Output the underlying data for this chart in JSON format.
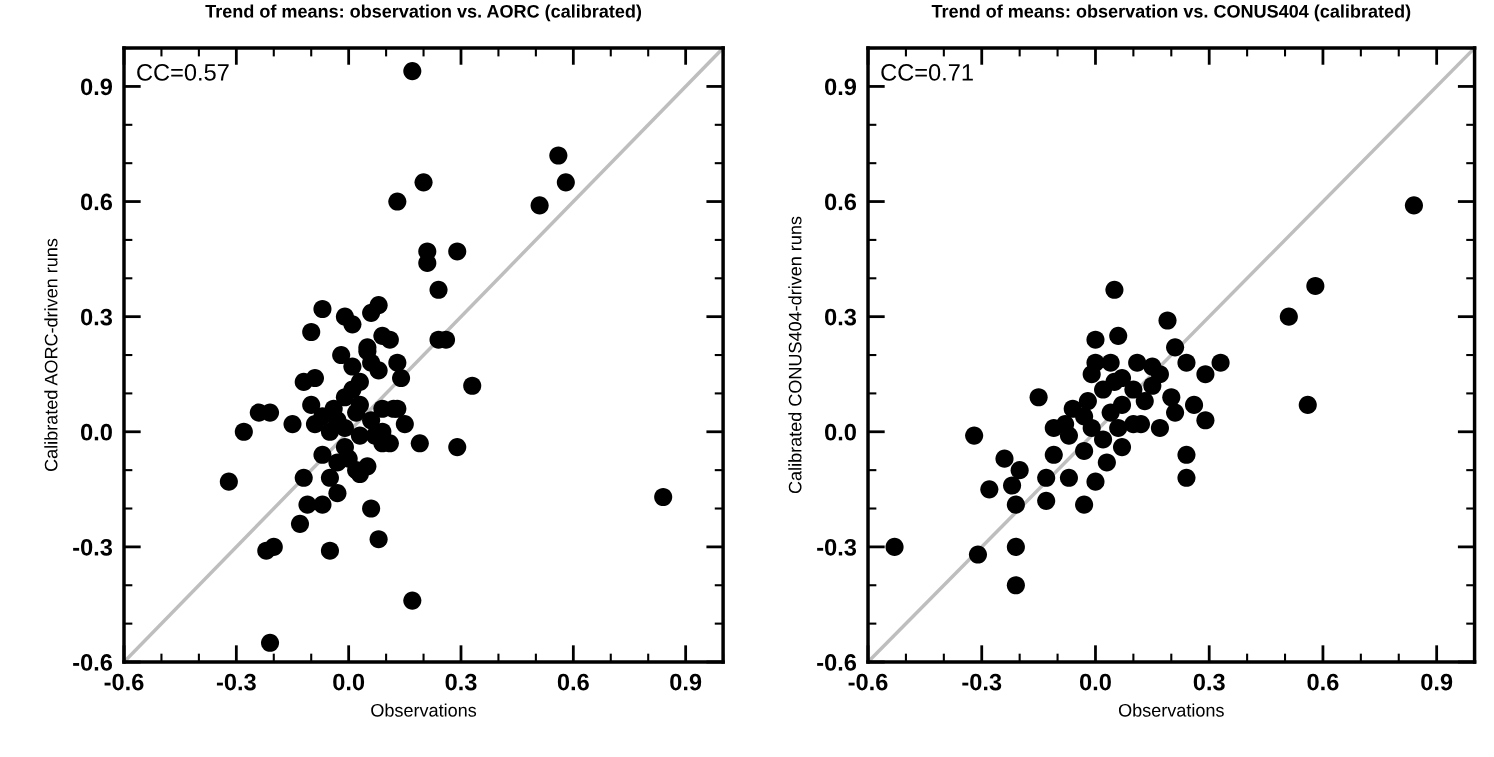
{
  "chart_data": [
    {
      "type": "scatter",
      "title": "Trend of means: observation vs. AORC (calibrated)",
      "xlabel": "Observations",
      "ylabel": "Calibrated AORC-driven runs",
      "annotations": [
        "CC=0.57"
      ],
      "xlim": [
        -0.6,
        1.0
      ],
      "ylim": [
        -0.6,
        1.0
      ],
      "xticks": [
        -0.6,
        -0.3,
        {
          "value": 0,
          "label": "0.0"
        },
        0.3,
        0.6,
        0.9
      ],
      "yticks": [
        -0.6,
        -0.3,
        {
          "value": 0,
          "label": "0.0"
        },
        0.3,
        0.6,
        0.9
      ],
      "grid": false,
      "series": [
        {
          "type": "line",
          "marker": "none",
          "color": "#bebebe",
          "x": [
            -0.6,
            1.0
          ],
          "values": [
            -0.6,
            1.0
          ]
        },
        {
          "marker": "circle",
          "color": "#000000",
          "x": [
            0.17,
            0.56,
            0.58,
            0.51,
            0.2,
            0.13,
            0.21,
            0.21,
            0.29,
            0.24,
            -0.07,
            0.08,
            0.06,
            -0.01,
            0.01,
            -0.1,
            0.09,
            0.11,
            0.24,
            0.26,
            -0.02,
            0.05,
            0.13,
            0.14,
            0.33,
            -0.12,
            -0.09,
            -0.1,
            0.12,
            -0.24,
            -0.21,
            -0.15,
            -0.28,
            -0.09,
            0.15,
            0.19,
            0.29,
            0.11,
            -0.32,
            -0.12,
            -0.07,
            0.06,
            -0.07,
            -0.11,
            -0.13,
            0.08,
            -0.05,
            -0.2,
            -0.22,
            0.17,
            -0.21,
            0.84,
            0.03,
            0.05,
            -0.03,
            -0.05,
            -0.01,
            0.01,
            0.03,
            0.06,
            0.05,
            0.08,
            0.02,
            -0.03,
            -0.05,
            -0.01,
            0.03,
            0.06,
            0.09,
            -0.03,
            0.0,
            -0.04,
            0.01,
            0.09,
            0.13,
            -0.07,
            -0.01,
            0.02,
            0.07,
            0.09,
            0.03
          ],
          "values": [
            0.94,
            0.72,
            0.65,
            0.59,
            0.65,
            0.6,
            0.47,
            0.44,
            0.47,
            0.37,
            0.32,
            0.33,
            0.31,
            0.3,
            0.28,
            0.26,
            0.25,
            0.24,
            0.24,
            0.24,
            0.2,
            0.22,
            0.18,
            0.14,
            0.12,
            0.13,
            0.14,
            0.07,
            0.06,
            0.05,
            0.05,
            0.02,
            0.0,
            0.02,
            0.02,
            -0.03,
            -0.04,
            -0.03,
            -0.13,
            -0.12,
            -0.06,
            -0.2,
            -0.19,
            -0.19,
            -0.24,
            -0.28,
            -0.31,
            -0.3,
            -0.31,
            -0.44,
            -0.55,
            -0.17,
            -0.11,
            -0.09,
            -0.16,
            -0.12,
            0.09,
            0.11,
            0.13,
            0.18,
            0.21,
            0.16,
            0.05,
            0.03,
            0.0,
            -0.04,
            -0.01,
            0.03,
            0.0,
            -0.08,
            -0.07,
            0.06,
            0.17,
            0.06,
            0.06,
            0.04,
            0.01,
            -0.1,
            -0.01,
            -0.03,
            0.07
          ]
        }
      ]
    },
    {
      "type": "scatter",
      "title": "Trend of means: observation vs. CONUS404 (calibrated)",
      "xlabel": "Observations",
      "ylabel": "Calibrated CONUS404-driven runs",
      "annotations": [
        "CC=0.71"
      ],
      "xlim": [
        -0.6,
        1.0
      ],
      "ylim": [
        -0.6,
        1.0
      ],
      "xticks": [
        -0.6,
        -0.3,
        {
          "value": 0,
          "label": "0.0"
        },
        0.3,
        0.6,
        0.9
      ],
      "yticks": [
        -0.6,
        -0.3,
        {
          "value": 0,
          "label": "0.0"
        },
        0.3,
        0.6,
        0.9
      ],
      "grid": false,
      "series": [
        {
          "type": "line",
          "marker": "none",
          "color": "#bebebe",
          "x": [
            -0.6,
            1.0
          ],
          "values": [
            -0.6,
            1.0
          ]
        },
        {
          "marker": "circle",
          "color": "#000000",
          "x": [
            -0.53,
            -0.31,
            -0.21,
            -0.21,
            -0.32,
            -0.24,
            -0.2,
            -0.28,
            -0.22,
            -0.21,
            -0.13,
            -0.13,
            -0.03,
            -0.15,
            0.84,
            0.58,
            0.51,
            0.56,
            0.05,
            0.19,
            0.06,
            0.0,
            0.21,
            0.24,
            0.33,
            0.29,
            0.2,
            0.26,
            0.21,
            0.29,
            0.17,
            0.24,
            0.24,
            0.0,
            0.11,
            0.15,
            0.17,
            0.12,
            -0.11,
            -0.11,
            -0.07,
            0.0,
            0.03,
            0.07,
            -0.02,
            0.02,
            0.05,
            -0.03,
            -0.01,
            0.04,
            0.07,
            0.1,
            -0.07,
            -0.03,
            0.02,
            0.06,
            0.1,
            0.13,
            -0.06,
            -0.08,
            -0.01,
            0.04,
            0.07,
            0.15
          ],
          "values": [
            -0.3,
            -0.32,
            -0.4,
            -0.3,
            -0.01,
            -0.07,
            -0.1,
            -0.15,
            -0.14,
            -0.19,
            -0.18,
            -0.12,
            -0.19,
            0.09,
            0.59,
            0.38,
            0.3,
            0.07,
            0.37,
            0.29,
            0.25,
            0.24,
            0.22,
            0.18,
            0.18,
            0.15,
            0.09,
            0.07,
            0.05,
            0.03,
            0.01,
            -0.06,
            -0.12,
            0.18,
            0.18,
            0.17,
            0.15,
            0.02,
            0.01,
            -0.06,
            -0.12,
            -0.13,
            -0.08,
            -0.04,
            0.08,
            0.11,
            0.13,
            0.04,
            0.01,
            0.05,
            0.07,
            0.11,
            -0.01,
            -0.05,
            -0.02,
            0.01,
            0.02,
            0.08,
            0.06,
            0.02,
            0.15,
            0.18,
            0.14,
            0.12
          ]
        }
      ]
    }
  ]
}
